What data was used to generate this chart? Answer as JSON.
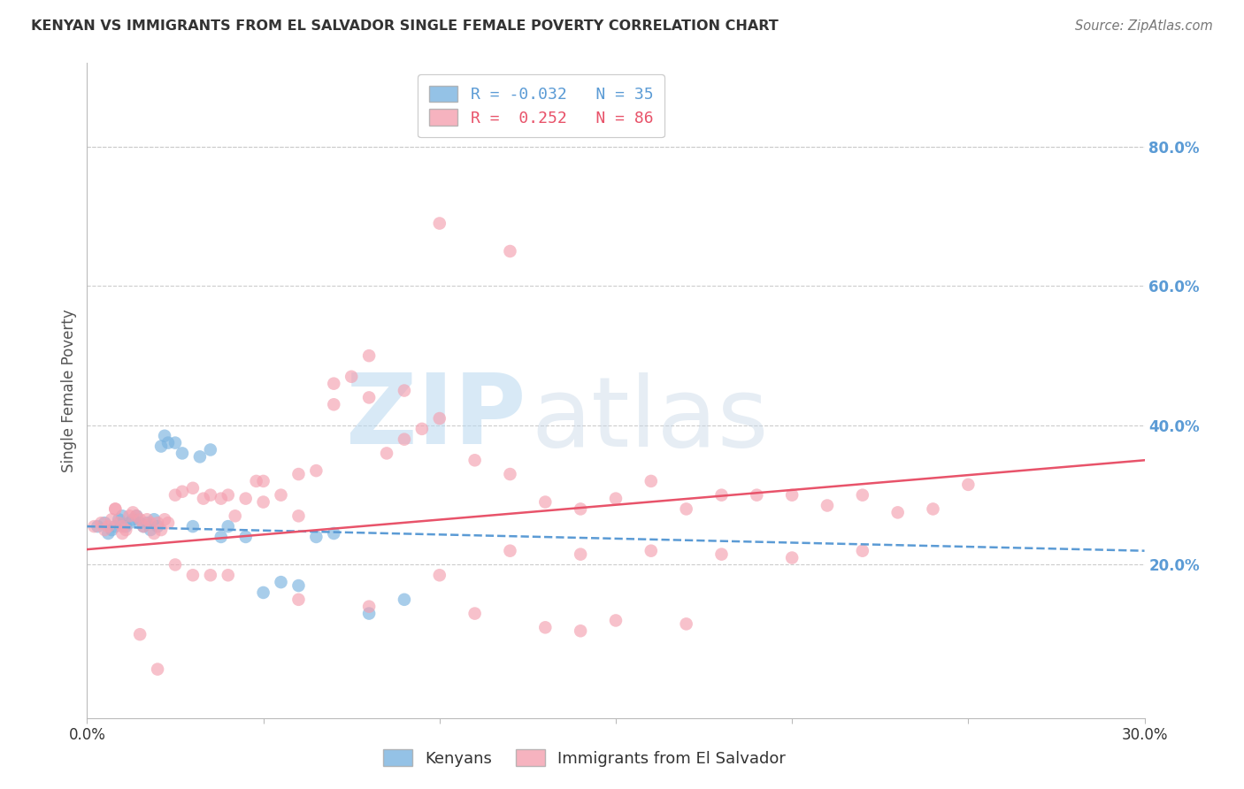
{
  "title": "KENYAN VS IMMIGRANTS FROM EL SALVADOR SINGLE FEMALE POVERTY CORRELATION CHART",
  "source": "Source: ZipAtlas.com",
  "ylabel": "Single Female Poverty",
  "xlim": [
    0.0,
    0.3
  ],
  "ylim": [
    -0.02,
    0.92
  ],
  "yticks_right": [
    0.2,
    0.4,
    0.6,
    0.8
  ],
  "ytick_labels_right": [
    "20.0%",
    "40.0%",
    "60.0%",
    "80.0%"
  ],
  "xticks": [
    0.0,
    0.05,
    0.1,
    0.15,
    0.2,
    0.25,
    0.3
  ],
  "xtick_labels": [
    "0.0%",
    "",
    "",
    "",
    "",
    "",
    "30.0%"
  ],
  "kenyan_color": "#7ab3e0",
  "salvador_color": "#f4a0b0",
  "kenyan_line_color": "#5b9bd5",
  "salvador_line_color": "#e8536a",
  "kenyan_R": -0.032,
  "kenyan_N": 35,
  "salvador_R": 0.252,
  "salvador_N": 86,
  "background_color": "#ffffff",
  "grid_color": "#cccccc",
  "axis_color": "#bbbbbb",
  "right_tick_color": "#5b9bd5",
  "watermark_zip": "ZIP",
  "watermark_atlas": "atlas",
  "kenyan_x": [
    0.003,
    0.005,
    0.006,
    0.007,
    0.008,
    0.009,
    0.01,
    0.011,
    0.012,
    0.013,
    0.014,
    0.015,
    0.016,
    0.017,
    0.018,
    0.019,
    0.02,
    0.021,
    0.022,
    0.023,
    0.025,
    0.027,
    0.03,
    0.032,
    0.035,
    0.038,
    0.04,
    0.045,
    0.05,
    0.055,
    0.06,
    0.065,
    0.07,
    0.08,
    0.09
  ],
  "kenyan_y": [
    0.255,
    0.26,
    0.245,
    0.25,
    0.255,
    0.265,
    0.27,
    0.255,
    0.26,
    0.265,
    0.27,
    0.26,
    0.255,
    0.26,
    0.25,
    0.265,
    0.255,
    0.37,
    0.385,
    0.375,
    0.375,
    0.36,
    0.255,
    0.355,
    0.365,
    0.24,
    0.255,
    0.24,
    0.16,
    0.175,
    0.17,
    0.24,
    0.245,
    0.13,
    0.15
  ],
  "salvador_x": [
    0.002,
    0.004,
    0.005,
    0.006,
    0.007,
    0.008,
    0.009,
    0.01,
    0.011,
    0.012,
    0.013,
    0.014,
    0.015,
    0.016,
    0.017,
    0.018,
    0.019,
    0.02,
    0.021,
    0.022,
    0.023,
    0.025,
    0.027,
    0.03,
    0.033,
    0.035,
    0.038,
    0.04,
    0.042,
    0.045,
    0.048,
    0.05,
    0.055,
    0.06,
    0.065,
    0.07,
    0.075,
    0.08,
    0.085,
    0.09,
    0.095,
    0.1,
    0.11,
    0.12,
    0.13,
    0.14,
    0.15,
    0.16,
    0.17,
    0.18,
    0.19,
    0.2,
    0.21,
    0.22,
    0.23,
    0.24,
    0.25,
    0.16,
    0.18,
    0.2,
    0.22,
    0.1,
    0.12,
    0.14,
    0.08,
    0.06,
    0.04,
    0.035,
    0.03,
    0.025,
    0.02,
    0.015,
    0.01,
    0.008,
    0.05,
    0.06,
    0.07,
    0.09,
    0.11,
    0.13,
    0.15,
    0.17,
    0.08,
    0.1,
    0.12,
    0.14
  ],
  "salvador_y": [
    0.255,
    0.26,
    0.25,
    0.255,
    0.265,
    0.28,
    0.26,
    0.245,
    0.25,
    0.27,
    0.275,
    0.27,
    0.265,
    0.255,
    0.265,
    0.26,
    0.245,
    0.26,
    0.25,
    0.265,
    0.26,
    0.3,
    0.305,
    0.31,
    0.295,
    0.3,
    0.295,
    0.3,
    0.27,
    0.295,
    0.32,
    0.32,
    0.3,
    0.33,
    0.335,
    0.46,
    0.47,
    0.5,
    0.36,
    0.38,
    0.395,
    0.41,
    0.35,
    0.33,
    0.29,
    0.28,
    0.295,
    0.32,
    0.28,
    0.3,
    0.3,
    0.3,
    0.285,
    0.3,
    0.275,
    0.28,
    0.315,
    0.22,
    0.215,
    0.21,
    0.22,
    0.185,
    0.22,
    0.215,
    0.14,
    0.15,
    0.185,
    0.185,
    0.185,
    0.2,
    0.05,
    0.1,
    0.255,
    0.28,
    0.29,
    0.27,
    0.43,
    0.45,
    0.13,
    0.11,
    0.12,
    0.115,
    0.44,
    0.69,
    0.65,
    0.105
  ]
}
